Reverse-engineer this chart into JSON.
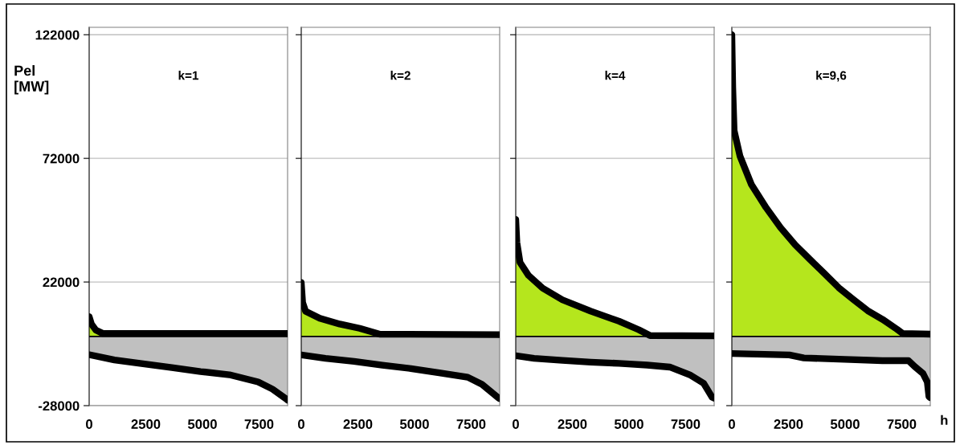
{
  "chart_data": [
    {
      "type": "area",
      "title": "k=1",
      "ylabel": "Pel\n[MW]",
      "xlim": [
        0,
        8760
      ],
      "ylim": [
        -28000,
        125000
      ],
      "xticks": [
        0,
        2500,
        5000,
        7500
      ],
      "yticks": [
        -28000,
        22000,
        72000,
        122000
      ],
      "grid": "y",
      "line_style": "solid",
      "marker": "none",
      "series": [
        {
          "color": "#b5e61d",
          "x": [
            0,
            100,
            300,
            600,
            8760
          ],
          "values": [
            8000,
            5000,
            2500,
            1200,
            1200
          ]
        },
        {
          "color": "#c0c0c0",
          "x": [
            0,
            1115,
            2380,
            3650,
            4920,
            6190,
            7460,
            8090,
            8720,
            8760
          ],
          "values": [
            -7400,
            -9500,
            -11100,
            -12600,
            -14200,
            -15500,
            -18400,
            -21300,
            -25400,
            -25800
          ]
        }
      ]
    },
    {
      "type": "area",
      "title": "k=2",
      "xlim": [
        0,
        8760
      ],
      "ylim": [
        -28000,
        125000
      ],
      "xticks": [
        0,
        2500,
        5000,
        7500
      ],
      "yticks": [
        -28000,
        22000,
        72000,
        122000
      ],
      "grid": "y",
      "tick_labels": "x",
      "line_style": "solid",
      "marker": "none",
      "series": [
        {
          "color": "#b5e61d",
          "x": [
            0,
            60,
            190,
            820,
            1700,
            2580,
            3460,
            8760
          ],
          "values": [
            21800,
            13700,
            10200,
            7300,
            5000,
            3250,
            900,
            700
          ]
        },
        {
          "color": "#c0c0c0",
          "x": [
            0,
            1070,
            2330,
            3580,
            4840,
            6090,
            7350,
            7980,
            8670,
            8760
          ],
          "values": [
            -7500,
            -8900,
            -10100,
            -11600,
            -13000,
            -14700,
            -16500,
            -19400,
            -24600,
            -25200
          ]
        }
      ]
    },
    {
      "type": "area",
      "title": "k=4",
      "xlim": [
        0,
        8760
      ],
      "ylim": [
        -28000,
        125000
      ],
      "xticks": [
        0,
        2500,
        5000,
        7500
      ],
      "yticks": [
        -28000,
        22000,
        72000,
        122000
      ],
      "grid": "y",
      "tick_labels": "x",
      "line_style": "solid",
      "marker": "none",
      "series": [
        {
          "color": "#b5e61d",
          "x": [
            0,
            50,
            190,
            560,
            1190,
            2060,
            3310,
            4560,
            5430,
            5930,
            8760
          ],
          "values": [
            47300,
            38000,
            29900,
            24700,
            19500,
            14800,
            10200,
            6150,
            2700,
            350,
            200
          ]
        },
        {
          "color": "#c0c0c0",
          "x": [
            0,
            810,
            2060,
            3310,
            4560,
            5800,
            6800,
            7680,
            8300,
            8670,
            8760
          ],
          "values": [
            -7800,
            -8900,
            -9700,
            -10400,
            -10900,
            -11600,
            -12400,
            -15500,
            -19000,
            -24600,
            -25000
          ]
        }
      ]
    },
    {
      "type": "area",
      "title": "k=9,6",
      "xlabel": "h",
      "xlim": [
        0,
        8760
      ],
      "ylim": [
        -28000,
        125000
      ],
      "xticks": [
        0,
        2500,
        5000,
        7500
      ],
      "yticks": [
        -28000,
        22000,
        72000,
        122000
      ],
      "grid": "y",
      "tick_labels": "x",
      "line_style": "solid",
      "marker": "none",
      "series": [
        {
          "color": "#b5e61d",
          "x": [
            0,
            40,
            100,
            360,
            870,
            1510,
            2150,
            2800,
            3440,
            4080,
            4720,
            5360,
            6000,
            6650,
            7290,
            7540,
            8760
          ],
          "values": [
            122000,
            100700,
            83300,
            72900,
            61300,
            52100,
            44000,
            37000,
            31200,
            25500,
            19700,
            15000,
            10400,
            6900,
            2900,
            1200,
            900
          ]
        },
        {
          "color": "#c0c0c0",
          "x": [
            0,
            2540,
            3180,
            4980,
            6650,
            7800,
            8060,
            8440,
            8630,
            8700,
            8760
          ],
          "values": [
            -6900,
            -7500,
            -8700,
            -9300,
            -9800,
            -9800,
            -12100,
            -15000,
            -18500,
            -24300,
            -24800
          ]
        }
      ]
    }
  ]
}
